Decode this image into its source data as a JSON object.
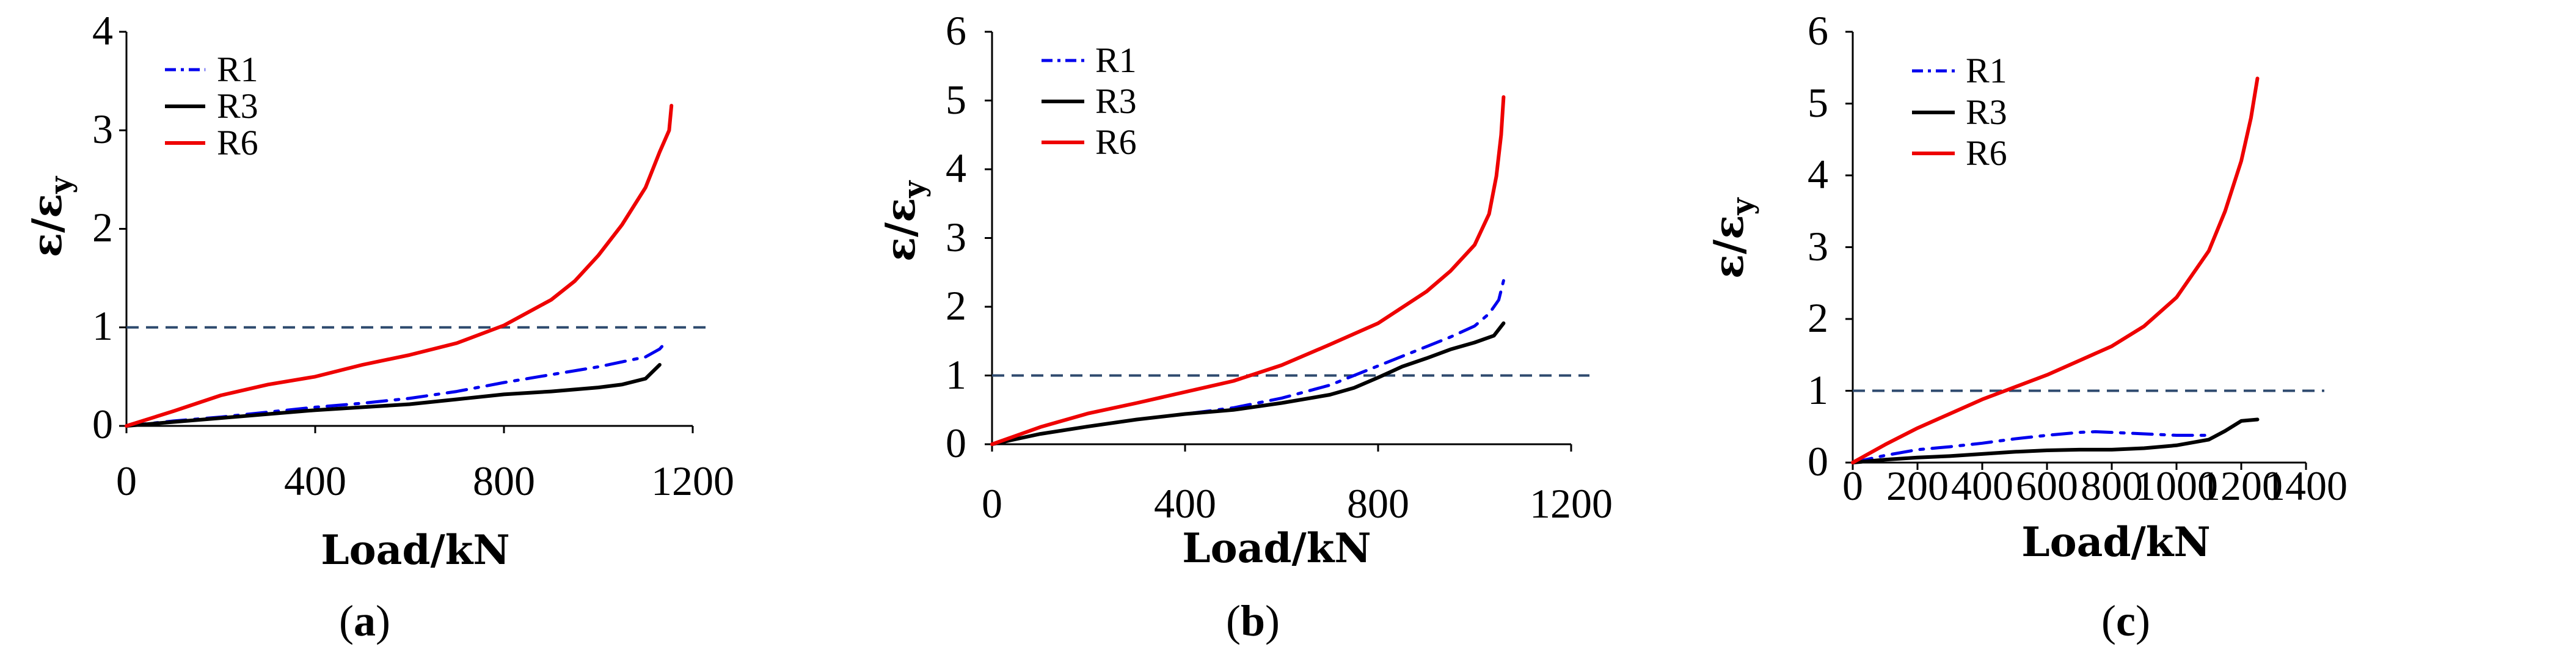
{
  "colors": {
    "R1": "#0000ee",
    "R3": "#000000",
    "R6": "#ee0000",
    "reference": "#2e4a6e"
  },
  "chart_data": [
    {
      "type": "line",
      "panel": "a",
      "xlabel": "Load/kN",
      "ylabel_main": "ε/ε",
      "ylabel_sub": "y",
      "xlim": [
        0,
        1200
      ],
      "ylim": [
        0,
        4
      ],
      "xticks": [
        0,
        400,
        800,
        1200
      ],
      "yticks": [
        0,
        1,
        2,
        3,
        4
      ],
      "reference_line": 1,
      "legend": [
        "R1",
        "R3",
        "R6"
      ],
      "series": [
        {
          "name": "R1",
          "style": "dashdot",
          "x": [
            0,
            100,
            200,
            300,
            400,
            500,
            600,
            700,
            800,
            900,
            1000,
            1100,
            1130,
            1145
          ],
          "y": [
            0,
            0.05,
            0.09,
            0.14,
            0.19,
            0.23,
            0.28,
            0.35,
            0.44,
            0.52,
            0.6,
            0.7,
            0.78,
            0.86
          ]
        },
        {
          "name": "R3",
          "style": "solid",
          "x": [
            0,
            100,
            200,
            300,
            400,
            500,
            600,
            700,
            800,
            900,
            1000,
            1050,
            1100,
            1130
          ],
          "y": [
            0,
            0.04,
            0.08,
            0.12,
            0.16,
            0.19,
            0.22,
            0.27,
            0.32,
            0.35,
            0.39,
            0.42,
            0.48,
            0.62
          ]
        },
        {
          "name": "R6",
          "style": "solid",
          "x": [
            0,
            100,
            200,
            300,
            400,
            500,
            600,
            700,
            800,
            900,
            950,
            1000,
            1050,
            1100,
            1130,
            1150,
            1155
          ],
          "y": [
            0,
            0.15,
            0.31,
            0.42,
            0.5,
            0.62,
            0.72,
            0.84,
            1.02,
            1.28,
            1.47,
            1.73,
            2.04,
            2.42,
            2.78,
            3.0,
            3.25
          ]
        }
      ]
    },
    {
      "type": "line",
      "panel": "b",
      "xlabel": "Load/kN",
      "ylabel_main": "ε/ε",
      "ylabel_sub": "y",
      "xlim": [
        0,
        1200
      ],
      "ylim": [
        0,
        6
      ],
      "xticks": [
        0,
        400,
        800,
        1200
      ],
      "yticks": [
        0,
        1,
        2,
        3,
        4,
        5,
        6
      ],
      "reference_line": 1,
      "legend": [
        "R1",
        "R3",
        "R6"
      ],
      "series": [
        {
          "name": "R1",
          "style": "dashdot",
          "x": [
            0,
            100,
            200,
            300,
            400,
            500,
            600,
            700,
            800,
            900,
            950,
            1000,
            1030,
            1050,
            1060
          ],
          "y": [
            0,
            0.15,
            0.26,
            0.36,
            0.44,
            0.53,
            0.67,
            0.86,
            1.14,
            1.42,
            1.56,
            1.72,
            1.9,
            2.1,
            2.38
          ]
        },
        {
          "name": "R3",
          "style": "solid",
          "x": [
            0,
            100,
            200,
            300,
            400,
            500,
            600,
            700,
            750,
            800,
            850,
            900,
            950,
            1000,
            1040,
            1060
          ],
          "y": [
            0,
            0.15,
            0.26,
            0.36,
            0.44,
            0.5,
            0.6,
            0.72,
            0.82,
            0.97,
            1.13,
            1.25,
            1.38,
            1.48,
            1.58,
            1.76
          ]
        },
        {
          "name": "R6",
          "style": "solid",
          "x": [
            0,
            100,
            200,
            300,
            400,
            500,
            600,
            700,
            800,
            900,
            950,
            1000,
            1030,
            1045,
            1055,
            1060
          ],
          "y": [
            0,
            0.25,
            0.45,
            0.6,
            0.76,
            0.92,
            1.15,
            1.45,
            1.76,
            2.22,
            2.52,
            2.9,
            3.35,
            3.9,
            4.5,
            5.05
          ]
        }
      ]
    },
    {
      "type": "line",
      "panel": "c",
      "xlabel": "Load/kN",
      "ylabel_main": "ε/ε",
      "ylabel_sub": "y",
      "xlim": [
        0,
        1400
      ],
      "ylim": [
        0,
        6
      ],
      "xticks": [
        0,
        200,
        400,
        600,
        800,
        1000,
        1200,
        1400
      ],
      "yticks": [
        0,
        1,
        2,
        3,
        4,
        5,
        6
      ],
      "reference_line": 1,
      "legend": [
        "R1",
        "R3",
        "R6"
      ],
      "series": [
        {
          "name": "R1",
          "style": "dashdot",
          "x": [
            0,
            100,
            200,
            300,
            400,
            500,
            600,
            700,
            750,
            800,
            900,
            1000,
            1100
          ],
          "y": [
            0,
            0.1,
            0.18,
            0.22,
            0.27,
            0.33,
            0.38,
            0.42,
            0.43,
            0.42,
            0.4,
            0.38,
            0.38
          ]
        },
        {
          "name": "R3",
          "style": "solid",
          "x": [
            0,
            100,
            200,
            300,
            400,
            500,
            600,
            700,
            800,
            900,
            1000,
            1100,
            1150,
            1200,
            1250
          ],
          "y": [
            0,
            0.04,
            0.07,
            0.09,
            0.12,
            0.15,
            0.17,
            0.18,
            0.18,
            0.2,
            0.24,
            0.32,
            0.44,
            0.58,
            0.6
          ]
        },
        {
          "name": "R6",
          "style": "solid",
          "x": [
            0,
            100,
            200,
            300,
            400,
            500,
            600,
            700,
            800,
            900,
            1000,
            1100,
            1150,
            1200,
            1230,
            1250
          ],
          "y": [
            0,
            0.25,
            0.48,
            0.68,
            0.88,
            1.05,
            1.22,
            1.42,
            1.62,
            1.9,
            2.3,
            2.95,
            3.5,
            4.2,
            4.8,
            5.35
          ]
        }
      ]
    }
  ]
}
